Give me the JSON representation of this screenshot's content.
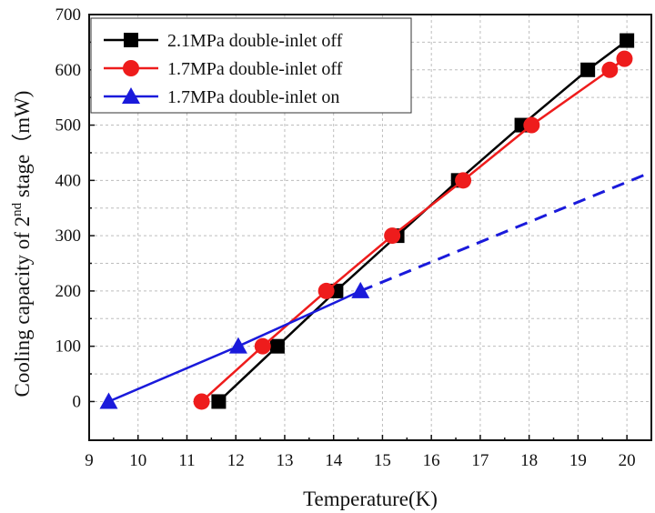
{
  "chart_data": {
    "type": "line",
    "xlabel": "Temperature(K)",
    "ylabel_main": "Cooling capacity of 2",
    "ylabel_sup": "nd",
    "ylabel_tail": " stage（mW)",
    "xlim": [
      9,
      20.5
    ],
    "ylim": [
      -70,
      700
    ],
    "xticks": [
      9,
      10,
      11,
      12,
      13,
      14,
      15,
      16,
      17,
      18,
      19,
      20
    ],
    "yticks": [
      0,
      100,
      200,
      300,
      400,
      500,
      600,
      700
    ],
    "grid": true,
    "legend_position": "top-left",
    "series": [
      {
        "name": "2.1MPa double-inlet off",
        "color": "#000000",
        "marker": "square",
        "x": [
          11.65,
          12.85,
          14.05,
          15.3,
          16.55,
          17.85,
          19.2,
          20.0
        ],
        "y": [
          0,
          100,
          200,
          300,
          400,
          500,
          600,
          653
        ]
      },
      {
        "name": "1.7MPa double-inlet off",
        "color": "#ee1c1c",
        "marker": "circle",
        "x": [
          11.3,
          12.55,
          13.85,
          15.2,
          16.65,
          18.05,
          19.65,
          19.95
        ],
        "y": [
          0,
          100,
          200,
          300,
          400,
          500,
          600,
          620
        ]
      },
      {
        "name": "1.7MPa double-inlet on",
        "color": "#1a1adb",
        "marker": "triangle",
        "x": [
          9.4,
          12.05,
          14.55
        ],
        "y": [
          0,
          100,
          200
        ],
        "extrapolation": {
          "x": [
            14.55,
            20.5
          ],
          "y": [
            200,
            415
          ]
        }
      }
    ]
  }
}
